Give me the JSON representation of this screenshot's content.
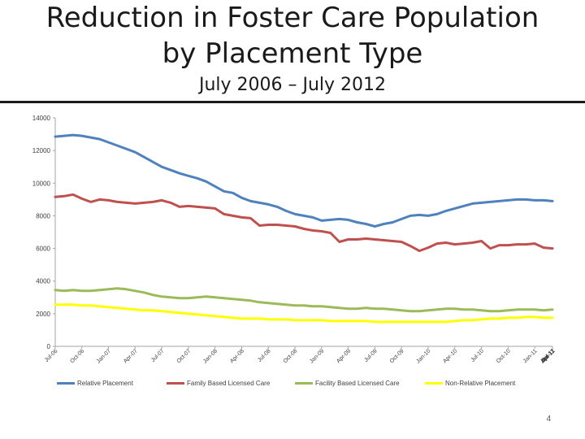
{
  "title_line1": "Reduction in Foster Care Population",
  "title_line2": "by Placement Type",
  "subtitle": "July 2006 – July 2012",
  "page_number": "4",
  "chart_data": {
    "type": "line",
    "ylim": [
      0,
      14000
    ],
    "yticks": [
      0,
      2000,
      4000,
      6000,
      8000,
      10000,
      12000,
      14000
    ],
    "grid": false,
    "legend": "bottom",
    "x_tick_labels": [
      "Jul-06",
      "Oct-06",
      "Jan-07",
      "Apr-07",
      "Jul-07",
      "Oct-07",
      "Jan-08",
      "Apr-08",
      "Jul-08",
      "Oct-08",
      "Jan-09",
      "Apr-09",
      "Jul-09",
      "Oct-09",
      "Jan-10",
      "Apr-10",
      "Jul-10",
      "Oct-10",
      "Jan-11",
      "Apr-11",
      "Jul-11",
      "Oct-11",
      "Jan-12",
      "Apr-12",
      "Jul-12"
    ],
    "x_tick_every": 3,
    "series": [
      {
        "name": "Relative Placement",
        "color": "#4f81bd",
        "values": [
          12850,
          12900,
          12950,
          12900,
          12800,
          12700,
          12500,
          12300,
          12100,
          11900,
          11600,
          11300,
          11000,
          10800,
          10600,
          10450,
          10300,
          10100,
          9800,
          9500,
          9400,
          9100,
          8900,
          8800,
          8700,
          8550,
          8300,
          8100,
          8000,
          7900,
          7700,
          7750,
          7800,
          7750,
          7600,
          7500,
          7350,
          7500,
          7600,
          7800,
          8000,
          8050,
          8000,
          8100,
          8300,
          8450,
          8600,
          8750,
          8800,
          8850,
          8900,
          8950,
          9000,
          9000,
          8950,
          8950,
          8900
        ]
      },
      {
        "name": "Family Based Licensed Care",
        "color": "#c0504d",
        "values": [
          9150,
          9200,
          9300,
          9050,
          8850,
          9000,
          8950,
          8850,
          8800,
          8750,
          8800,
          8850,
          8950,
          8800,
          8550,
          8600,
          8550,
          8500,
          8450,
          8100,
          8000,
          7900,
          7850,
          7400,
          7450,
          7450,
          7400,
          7350,
          7200,
          7100,
          7050,
          6950,
          6400,
          6550,
          6550,
          6600,
          6550,
          6500,
          6450,
          6400,
          6150,
          5850,
          6050,
          6300,
          6350,
          6250,
          6300,
          6350,
          6450,
          6000,
          6200,
          6200,
          6250,
          6250,
          6300,
          6050,
          6000
        ]
      },
      {
        "name": "Facility Based Licensed Care",
        "color": "#9bbb59",
        "values": [
          3450,
          3400,
          3450,
          3400,
          3400,
          3450,
          3500,
          3550,
          3500,
          3400,
          3300,
          3150,
          3050,
          3000,
          2950,
          2950,
          3000,
          3050,
          3000,
          2950,
          2900,
          2850,
          2800,
          2700,
          2650,
          2600,
          2550,
          2500,
          2500,
          2450,
          2450,
          2400,
          2350,
          2300,
          2300,
          2350,
          2300,
          2300,
          2250,
          2200,
          2150,
          2150,
          2200,
          2250,
          2300,
          2300,
          2250,
          2250,
          2200,
          2150,
          2150,
          2200,
          2250,
          2250,
          2250,
          2200,
          2250
        ]
      },
      {
        "name": "Non-Relative Placement",
        "color": "#ffff00",
        "values": [
          2550,
          2550,
          2550,
          2500,
          2500,
          2450,
          2400,
          2350,
          2300,
          2250,
          2200,
          2200,
          2150,
          2100,
          2050,
          2000,
          1950,
          1900,
          1850,
          1800,
          1750,
          1700,
          1700,
          1700,
          1650,
          1650,
          1650,
          1600,
          1600,
          1600,
          1600,
          1550,
          1550,
          1550,
          1550,
          1550,
          1500,
          1500,
          1500,
          1500,
          1500,
          1500,
          1500,
          1500,
          1500,
          1550,
          1600,
          1600,
          1650,
          1700,
          1700,
          1750,
          1750,
          1800,
          1800,
          1750,
          1750
        ]
      }
    ]
  }
}
